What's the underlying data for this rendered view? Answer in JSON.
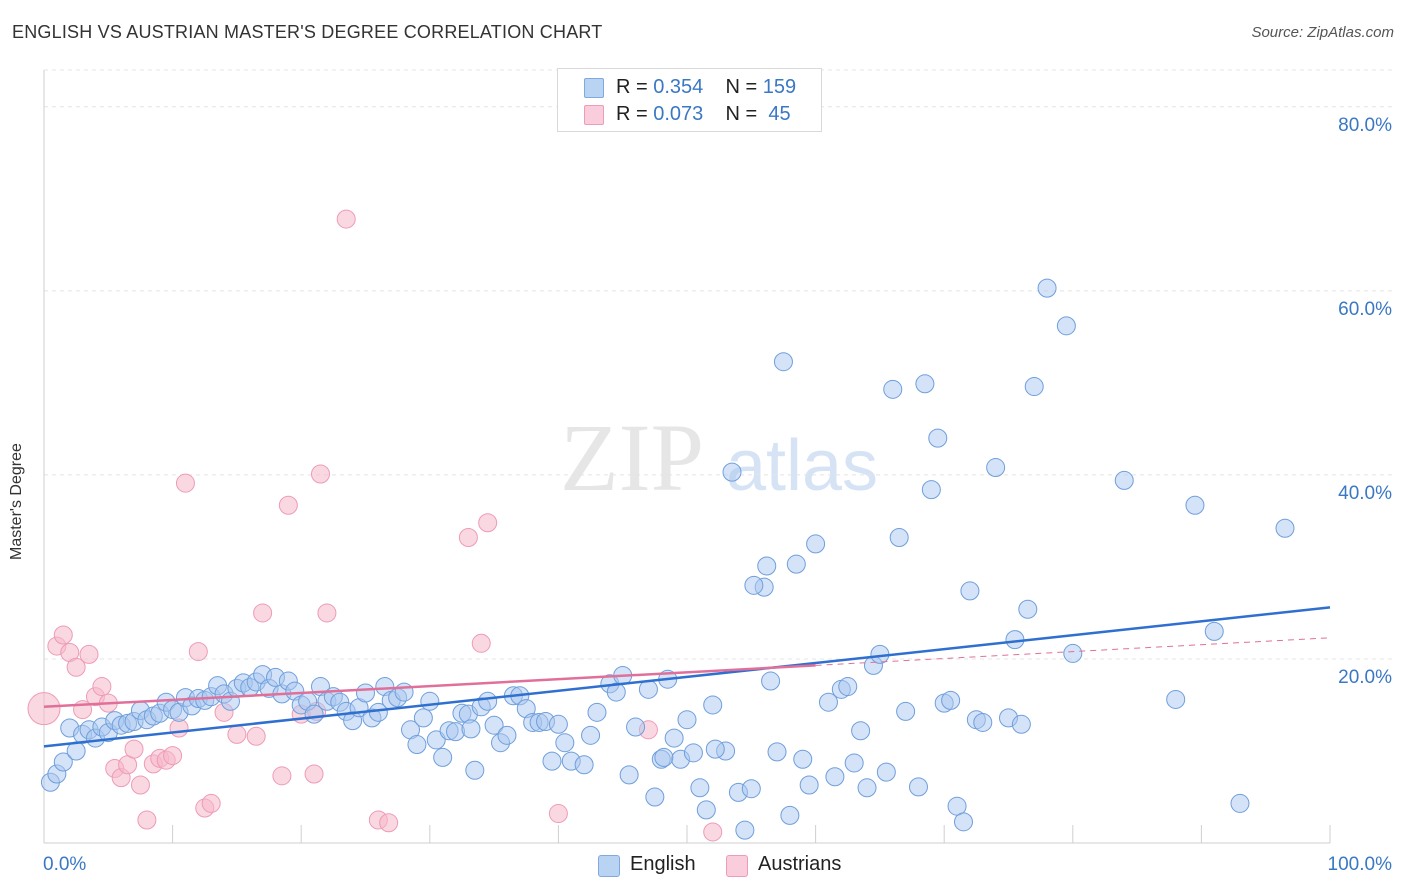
{
  "title": "ENGLISH VS AUSTRIAN MASTER'S DEGREE CORRELATION CHART",
  "source": "Source: ZipAtlas.com",
  "watermark": {
    "zip": "ZIP",
    "atlas": "atlas"
  },
  "legend": {
    "rows": [
      {
        "r_label": "R =",
        "r_value": "0.354",
        "n_label": "N =",
        "n_value": "159"
      },
      {
        "r_label": "R =",
        "r_value": "0.073",
        "n_label": "N =",
        "n_value": " 45"
      }
    ]
  },
  "colors": {
    "english": "#a9c8f0",
    "english_line": "#2f6fcf",
    "austrians": "#f6b8cb",
    "austrians_line": "#e0709a",
    "axis_text": "#3a78c4"
  },
  "chart_data": {
    "type": "scatter",
    "title": "ENGLISH VS AUSTRIAN MASTER'S DEGREE CORRELATION CHART",
    "xlabel": "",
    "ylabel": "Master's Degree",
    "xlim": [
      0,
      100
    ],
    "ylim": [
      0,
      84
    ],
    "x_tick_labels": [
      "0.0%",
      "100.0%"
    ],
    "y_ticks": [
      20,
      40,
      60,
      80
    ],
    "y_tick_labels": [
      "20.0%",
      "40.0%",
      "60.0%",
      "80.0%"
    ],
    "grid": true,
    "legend_position": "top-center",
    "series": [
      {
        "name": "English",
        "color": "#a9c8f0",
        "trend": {
          "x": [
            0,
            100
          ],
          "y": [
            10.5,
            25.6
          ]
        },
        "points": [
          [
            0.5,
            6.6
          ],
          [
            1,
            7.5
          ],
          [
            1.5,
            8.8
          ],
          [
            2,
            12.5
          ],
          [
            2.5,
            10
          ],
          [
            3,
            11.8
          ],
          [
            3.5,
            12.3
          ],
          [
            4,
            11.4
          ],
          [
            4.5,
            12.6
          ],
          [
            5,
            12
          ],
          [
            5.5,
            13.3
          ],
          [
            6,
            12.8
          ],
          [
            6.5,
            13
          ],
          [
            7,
            13.2
          ],
          [
            7.5,
            14.4
          ],
          [
            8,
            13.4
          ],
          [
            8.5,
            13.8
          ],
          [
            9,
            14.1
          ],
          [
            9.5,
            15.3
          ],
          [
            10,
            14.5
          ],
          [
            10.5,
            14.2
          ],
          [
            11,
            15.8
          ],
          [
            11.5,
            14.9
          ],
          [
            12,
            15.7
          ],
          [
            12.5,
            15.5
          ],
          [
            13,
            15.9
          ],
          [
            13.5,
            17.1
          ],
          [
            14,
            16.2
          ],
          [
            14.5,
            15.4
          ],
          [
            15,
            16.8
          ],
          [
            15.5,
            17.4
          ],
          [
            16,
            16.9
          ],
          [
            16.5,
            17.5
          ],
          [
            17,
            18.3
          ],
          [
            17.5,
            16.8
          ],
          [
            18,
            18
          ],
          [
            18.5,
            16.2
          ],
          [
            19,
            17.6
          ],
          [
            19.5,
            16.5
          ],
          [
            20,
            15
          ],
          [
            20.5,
            15.4
          ],
          [
            21,
            14
          ],
          [
            21.5,
            17
          ],
          [
            22,
            15.4
          ],
          [
            22.5,
            15.9
          ],
          [
            23,
            15.3
          ],
          [
            23.5,
            14.3
          ],
          [
            24,
            13.3
          ],
          [
            24.5,
            14.7
          ],
          [
            25,
            16.3
          ],
          [
            25.5,
            13.6
          ],
          [
            26,
            14.2
          ],
          [
            26.5,
            17
          ],
          [
            27,
            15.5
          ],
          [
            27.5,
            15.8
          ],
          [
            28,
            16.4
          ],
          [
            28.5,
            12.3
          ],
          [
            29,
            10.7
          ],
          [
            29.5,
            13.6
          ],
          [
            30,
            15.4
          ],
          [
            30.5,
            11.2
          ],
          [
            31,
            9.3
          ],
          [
            31.5,
            12.2
          ],
          [
            32,
            12.1
          ],
          [
            32.5,
            14.1
          ],
          [
            33,
            14
          ],
          [
            33.5,
            7.9
          ],
          [
            34,
            14.8
          ],
          [
            34.5,
            15.4
          ],
          [
            35,
            12.8
          ],
          [
            35.5,
            10.9
          ],
          [
            36,
            11.7
          ],
          [
            36.5,
            16
          ],
          [
            37,
            16
          ],
          [
            37.5,
            14.6
          ],
          [
            38,
            13.1
          ],
          [
            38.5,
            13.1
          ],
          [
            39,
            13.2
          ],
          [
            39.5,
            8.9
          ],
          [
            40,
            12.9
          ],
          [
            40.5,
            10.9
          ],
          [
            41,
            8.9
          ],
          [
            42,
            8.5
          ],
          [
            42.5,
            11.7
          ],
          [
            43,
            14.2
          ],
          [
            44,
            17.3
          ],
          [
            44.5,
            16.4
          ],
          [
            45,
            18.2
          ],
          [
            45.5,
            7.4
          ],
          [
            46,
            12.6
          ],
          [
            47,
            16.7
          ],
          [
            47.5,
            5
          ],
          [
            48,
            9.1
          ],
          [
            48.5,
            17.8
          ],
          [
            49,
            11.4
          ],
          [
            49.5,
            9.1
          ],
          [
            50,
            13.4
          ],
          [
            50.5,
            9.8
          ],
          [
            51,
            6
          ],
          [
            51.5,
            3.6
          ],
          [
            52,
            15
          ],
          [
            53,
            10
          ],
          [
            53.5,
            40.3
          ],
          [
            54,
            5.5
          ],
          [
            54.5,
            1.4
          ],
          [
            55,
            5.9
          ],
          [
            56,
            27.8
          ],
          [
            56.5,
            17.6
          ],
          [
            57,
            9.9
          ],
          [
            57.5,
            52.3
          ],
          [
            58,
            3
          ],
          [
            58.5,
            30.3
          ],
          [
            59,
            9.1
          ],
          [
            59.5,
            6.3
          ],
          [
            60,
            32.5
          ],
          [
            61,
            15.3
          ],
          [
            61.5,
            7.2
          ],
          [
            62,
            16.7
          ],
          [
            62.5,
            17
          ],
          [
            63,
            8.7
          ],
          [
            63.5,
            12.2
          ],
          [
            64,
            6
          ],
          [
            64.5,
            19.3
          ],
          [
            65,
            20.5
          ],
          [
            65.5,
            7.7
          ],
          [
            66,
            49.3
          ],
          [
            66.5,
            33.2
          ],
          [
            67,
            14.3
          ],
          [
            68,
            6.1
          ],
          [
            68.5,
            49.9
          ],
          [
            69,
            38.4
          ],
          [
            69.5,
            44
          ],
          [
            70,
            15.2
          ],
          [
            70.5,
            15.5
          ],
          [
            71,
            4
          ],
          [
            71.5,
            2.3
          ],
          [
            72,
            27.4
          ],
          [
            72.5,
            13.4
          ],
          [
            73,
            13.1
          ],
          [
            74,
            40.8
          ],
          [
            75,
            13.6
          ],
          [
            75.5,
            22.1
          ],
          [
            76,
            12.9
          ],
          [
            76.5,
            25.4
          ],
          [
            77,
            49.6
          ],
          [
            78,
            60.3
          ],
          [
            79.5,
            56.2
          ],
          [
            80,
            20.6
          ],
          [
            84,
            39.4
          ],
          [
            88,
            15.6
          ],
          [
            89.5,
            36.7
          ],
          [
            91,
            23
          ],
          [
            93,
            4.3
          ],
          [
            96.5,
            34.2
          ],
          [
            33.2,
            12.4
          ],
          [
            55.2,
            28
          ],
          [
            52.2,
            10.2
          ],
          [
            48.2,
            9.3
          ],
          [
            56.2,
            30.1
          ]
        ]
      },
      {
        "name": "Austrians",
        "color": "#f6b8cb",
        "trend": {
          "x": [
            0,
            60
          ],
          "y": [
            14.8,
            19.3
          ]
        },
        "points": [
          [
            0,
            14.6
          ],
          [
            1,
            21.4
          ],
          [
            1.5,
            22.6
          ],
          [
            2,
            20.7
          ],
          [
            2.5,
            19.1
          ],
          [
            3,
            14.5
          ],
          [
            3.5,
            20.5
          ],
          [
            4,
            15.9
          ],
          [
            4.5,
            17
          ],
          [
            5,
            15.2
          ],
          [
            5.5,
            8.1
          ],
          [
            6,
            7.1
          ],
          [
            6.5,
            8.5
          ],
          [
            7,
            10.2
          ],
          [
            7.5,
            6.3
          ],
          [
            8,
            2.5
          ],
          [
            8.5,
            8.6
          ],
          [
            9,
            9.2
          ],
          [
            9.5,
            9
          ],
          [
            10,
            9.5
          ],
          [
            10.5,
            12.5
          ],
          [
            11,
            39.1
          ],
          [
            12,
            20.8
          ],
          [
            12.5,
            3.8
          ],
          [
            13,
            4.3
          ],
          [
            14,
            14.2
          ],
          [
            15,
            11.8
          ],
          [
            16.5,
            11.6
          ],
          [
            17,
            25
          ],
          [
            18.5,
            7.3
          ],
          [
            19,
            36.7
          ],
          [
            20,
            14
          ],
          [
            21,
            7.5
          ],
          [
            21.5,
            40.1
          ],
          [
            22,
            25
          ],
          [
            23.5,
            67.8
          ],
          [
            26,
            2.5
          ],
          [
            26.8,
            2.2
          ],
          [
            33,
            33.2
          ],
          [
            34,
            21.7
          ],
          [
            34.5,
            34.8
          ],
          [
            40,
            3.2
          ],
          [
            47,
            12.3
          ],
          [
            52,
            1.2
          ],
          [
            21.2,
            14.3
          ]
        ]
      }
    ]
  }
}
